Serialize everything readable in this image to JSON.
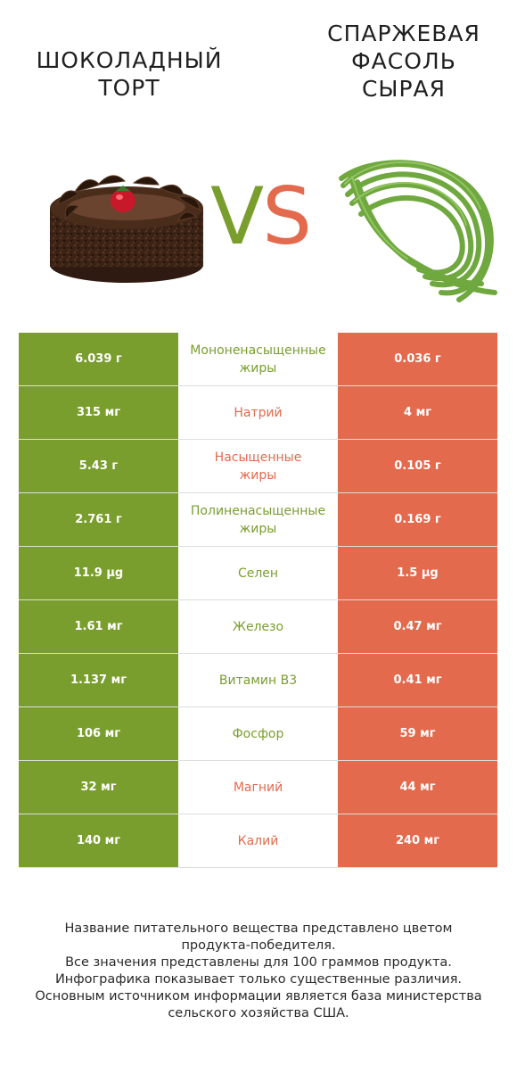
{
  "left_product": {
    "title_lines": [
      "ШОКОЛАДНЫЙ",
      "ТОРТ"
    ],
    "image": "chocolate-cake"
  },
  "right_product": {
    "title_lines": [
      "СПАРЖЕВАЯ",
      "ФАСОЛЬ",
      "СЫРАЯ"
    ],
    "image": "green-beans"
  },
  "vs": {
    "v": "V",
    "s": "S"
  },
  "colors": {
    "left": "#7a9e2e",
    "right": "#e36a4d"
  },
  "rows": [
    {
      "left": "6.039 г",
      "lines": [
        "Мононенасыщенные",
        "жиры"
      ],
      "right": "0.036 г",
      "winner": "left"
    },
    {
      "left": "315 мг",
      "lines": [
        "Натрий"
      ],
      "right": "4 мг",
      "winner": "right"
    },
    {
      "left": "5.43 г",
      "lines": [
        "Насыщенные",
        "жиры"
      ],
      "right": "0.105 г",
      "winner": "right"
    },
    {
      "left": "2.761 г",
      "lines": [
        "Полиненасыщенные",
        "жиры"
      ],
      "right": "0.169 г",
      "winner": "left"
    },
    {
      "left": "11.9 µg",
      "lines": [
        "Селен"
      ],
      "right": "1.5 µg",
      "winner": "left"
    },
    {
      "left": "1.61 мг",
      "lines": [
        "Железо"
      ],
      "right": "0.47 мг",
      "winner": "left"
    },
    {
      "left": "1.137 мг",
      "lines": [
        "Витамин B3"
      ],
      "right": "0.41 мг",
      "winner": "left"
    },
    {
      "left": "106 мг",
      "lines": [
        "Фосфор"
      ],
      "right": "59 мг",
      "winner": "left"
    },
    {
      "left": "32 мг",
      "lines": [
        "Магний"
      ],
      "right": "44 мг",
      "winner": "right"
    },
    {
      "left": "140 мг",
      "lines": [
        "Калий"
      ],
      "right": "240 мг",
      "winner": "right"
    }
  ],
  "footer": [
    "Название питательного вещества представлено цветом",
    "продукта-победителя.",
    "Все значения представлены для 100 граммов продукта.",
    "Инфографика показывает только существенные различия.",
    "Основным источником информации является база министерства",
    "сельского хозяйства США."
  ]
}
